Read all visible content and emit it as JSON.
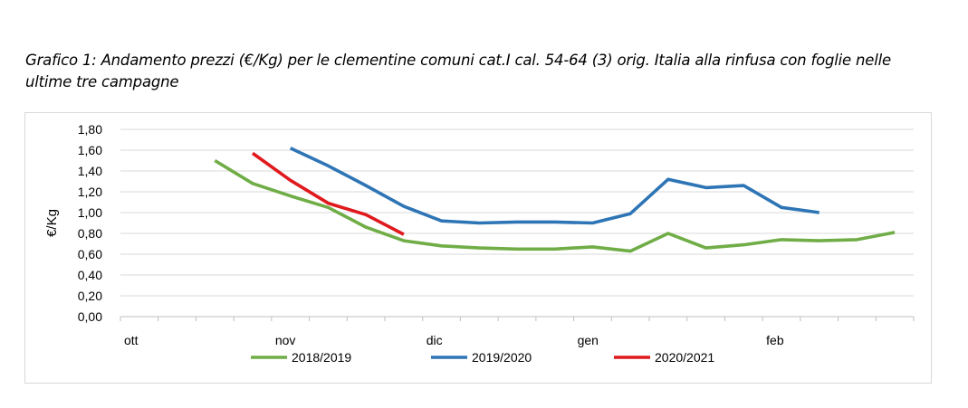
{
  "caption": {
    "line1": "Grafico 1: Andamento prezzi (€/Kg) per le clementine comuni cat.I cal. 54-64 (3) orig. Italia alla rinfusa con foglie nelle",
    "line2": "ultime tre campagne"
  },
  "chart_data": {
    "type": "line",
    "title": "Grafico 1: Andamento prezzi (€/Kg) per le clementine comuni cat.I cal. 54-64 (3) orig. Italia alla rinfusa con foglie nelle ultime tre campagne",
    "ylabel": "€/Kg",
    "xlabel": "",
    "ylim": [
      0,
      1.8
    ],
    "yticks": [
      "0,00",
      "0,20",
      "0,40",
      "0,60",
      "0,80",
      "1,00",
      "1,20",
      "1,40",
      "1,60",
      "1,80"
    ],
    "x_month_labels": [
      {
        "label": "ott",
        "week": 0
      },
      {
        "label": "nov",
        "week": 4
      },
      {
        "label": "dic",
        "week": 8
      },
      {
        "label": "gen",
        "week": 12
      },
      {
        "label": "feb",
        "week": 17
      }
    ],
    "x_weeks_total": 21,
    "grid": "horizontal",
    "legend_position": "bottom",
    "series": [
      {
        "name": "2018/2019",
        "color": "#70ad47",
        "points": [
          [
            2.5,
            1.5
          ],
          [
            3.5,
            1.28
          ],
          [
            4.5,
            1.16
          ],
          [
            5.5,
            1.05
          ],
          [
            6.5,
            0.86
          ],
          [
            7.5,
            0.73
          ],
          [
            8.5,
            0.68
          ],
          [
            9.5,
            0.66
          ],
          [
            10.5,
            0.65
          ],
          [
            11.5,
            0.65
          ],
          [
            12.5,
            0.67
          ],
          [
            13.5,
            0.63
          ],
          [
            14.5,
            0.8
          ],
          [
            15.5,
            0.66
          ],
          [
            16.5,
            0.69
          ],
          [
            17.5,
            0.74
          ],
          [
            18.5,
            0.73
          ],
          [
            19.5,
            0.74
          ],
          [
            20.5,
            0.81
          ]
        ]
      },
      {
        "name": "2019/2020",
        "color": "#2e75b6",
        "points": [
          [
            4.5,
            1.62
          ],
          [
            5.5,
            1.45
          ],
          [
            6.5,
            1.26
          ],
          [
            7.5,
            1.06
          ],
          [
            8.5,
            0.92
          ],
          [
            9.5,
            0.9
          ],
          [
            10.5,
            0.91
          ],
          [
            11.5,
            0.91
          ],
          [
            12.5,
            0.9
          ],
          [
            13.5,
            0.99
          ],
          [
            14.5,
            1.32
          ],
          [
            15.5,
            1.24
          ],
          [
            16.5,
            1.26
          ],
          [
            17.5,
            1.05
          ],
          [
            18.5,
            1.0
          ]
        ]
      },
      {
        "name": "2020/2021",
        "color": "#e0191d",
        "points": [
          [
            3.5,
            1.57
          ],
          [
            4.5,
            1.31
          ],
          [
            5.5,
            1.09
          ],
          [
            6.5,
            0.98
          ],
          [
            7.5,
            0.79
          ]
        ]
      }
    ]
  }
}
